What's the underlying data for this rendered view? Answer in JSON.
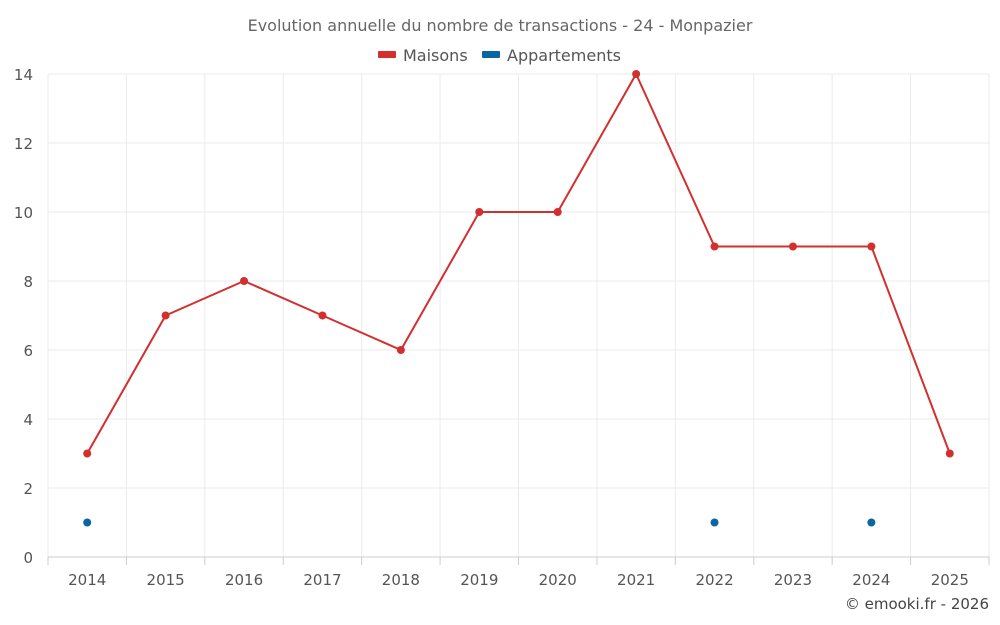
{
  "chart_data": {
    "type": "line",
    "title": "Evolution annuelle du nombre de transactions - 24 - Monpazier",
    "categories": [
      "2014",
      "2015",
      "2016",
      "2017",
      "2018",
      "2019",
      "2020",
      "2021",
      "2022",
      "2023",
      "2024",
      "2025"
    ],
    "y_ticks": [
      "0",
      "2",
      "4",
      "6",
      "8",
      "10",
      "12",
      "14"
    ],
    "ylim": [
      0,
      14
    ],
    "grid": true,
    "legend_position": "top-center",
    "series": [
      {
        "name": "Maisons",
        "color": "#d32f2f",
        "values": [
          3,
          7,
          8,
          7,
          6,
          10,
          10,
          14,
          9,
          9,
          9,
          3
        ]
      },
      {
        "name": "Appartements",
        "color": "#0a66a0",
        "values": [
          1,
          null,
          null,
          null,
          null,
          null,
          null,
          null,
          1,
          null,
          1,
          null
        ]
      }
    ],
    "credit": "© emooki.fr - 2026"
  }
}
